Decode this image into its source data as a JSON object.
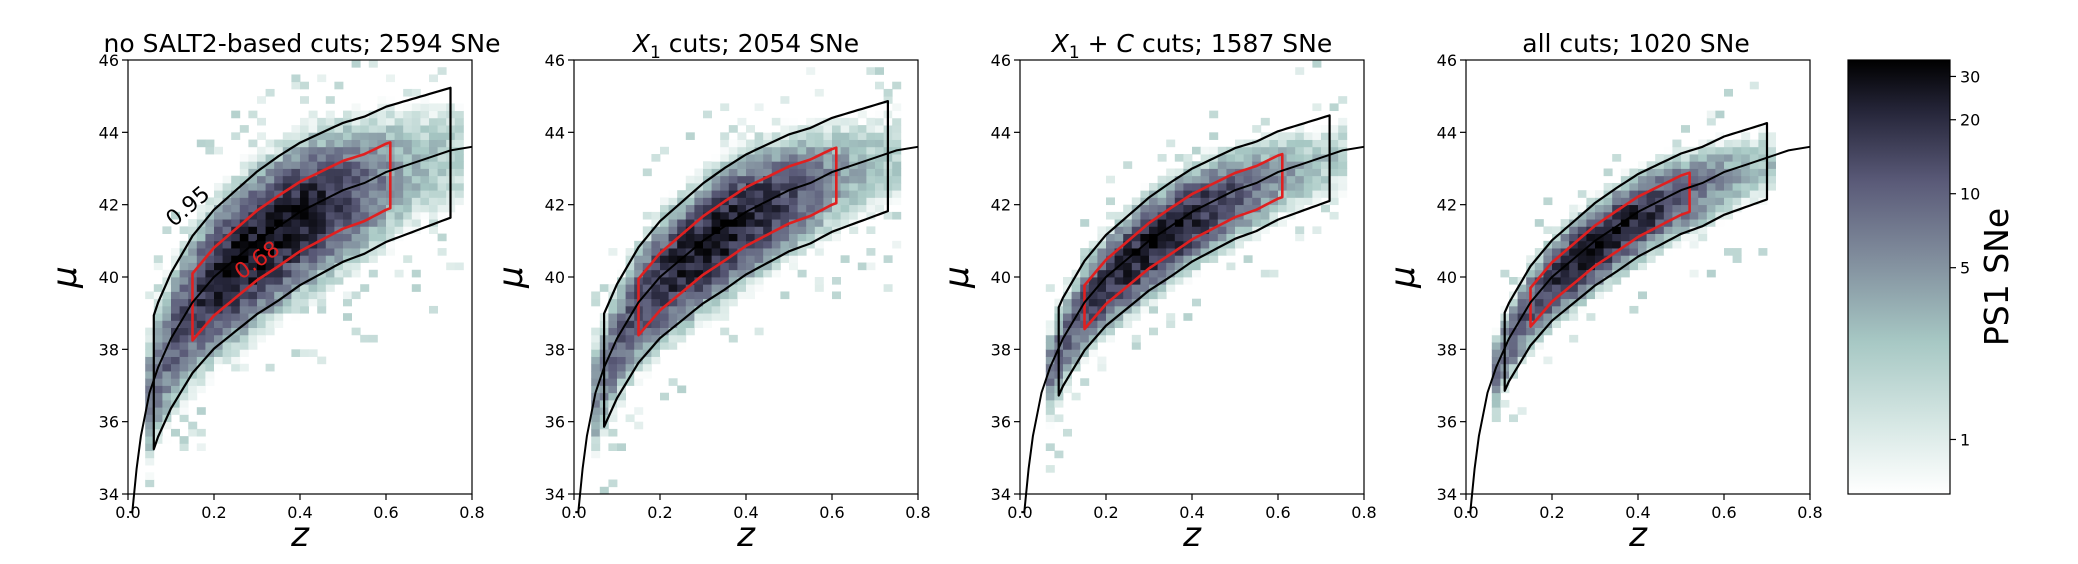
{
  "chart_data": [
    {
      "type": "heatmap",
      "title": "no SALT2-based cuts; 2594 SNe",
      "xlabel": "z",
      "ylabel": "μ",
      "xlim": [
        0.0,
        0.8
      ],
      "ylim": [
        34,
        46
      ],
      "xticks": [
        "0.0",
        "0.2",
        "0.4",
        "0.6",
        "0.8"
      ],
      "yticks": [
        "34",
        "36",
        "38",
        "40",
        "42",
        "44",
        "46"
      ],
      "n_sne": 2594,
      "contours": [
        {
          "level": "0.95",
          "color": "#000000"
        },
        {
          "level": "0.68",
          "color": "#e02020"
        }
      ]
    },
    {
      "type": "heatmap",
      "title_main": "X",
      "title_sub": "1",
      "title_rest": " cuts; 2054 SNe",
      "xlabel": "z",
      "ylabel": "μ",
      "xlim": [
        0.0,
        0.8
      ],
      "ylim": [
        34,
        46
      ],
      "xticks": [
        "0.0",
        "0.2",
        "0.4",
        "0.6",
        "0.8"
      ],
      "yticks": [
        "34",
        "36",
        "38",
        "40",
        "42",
        "44",
        "46"
      ],
      "n_sne": 2054
    },
    {
      "type": "heatmap",
      "title_main": "X",
      "title_sub": "1",
      "title_plus": " + ",
      "title_c": "C",
      "title_rest": " cuts; 1587 SNe",
      "xlabel": "z",
      "ylabel": "μ",
      "xlim": [
        0.0,
        0.8
      ],
      "ylim": [
        34,
        46
      ],
      "xticks": [
        "0.0",
        "0.2",
        "0.4",
        "0.6",
        "0.8"
      ],
      "yticks": [
        "34",
        "36",
        "38",
        "40",
        "42",
        "44",
        "46"
      ],
      "n_sne": 1587
    },
    {
      "type": "heatmap",
      "title": "all cuts; 1020 SNe",
      "xlabel": "z",
      "ylabel": "μ",
      "xlim": [
        0.0,
        0.8
      ],
      "ylim": [
        34,
        46
      ],
      "xticks": [
        "0.0",
        "0.2",
        "0.4",
        "0.6",
        "0.8"
      ],
      "yticks": [
        "34",
        "36",
        "38",
        "40",
        "42",
        "44",
        "46"
      ],
      "n_sne": 1020
    }
  ],
  "colorbar": {
    "label": "PS1 SNe",
    "scale": "log",
    "range": [
      0.6,
      35
    ],
    "ticks": [
      "1",
      "5",
      "10",
      "20",
      "30"
    ],
    "colormap": "bone_r"
  },
  "hubble_curve": {
    "z": [
      0.003,
      0.01,
      0.02,
      0.03,
      0.05,
      0.07,
      0.1,
      0.15,
      0.2,
      0.25,
      0.3,
      0.35,
      0.4,
      0.45,
      0.5,
      0.55,
      0.6,
      0.65,
      0.7,
      0.75,
      0.8
    ],
    "mu": [
      33.0,
      33.2,
      34.7,
      35.6,
      36.8,
      37.5,
      38.3,
      39.3,
      40.0,
      40.5,
      41.0,
      41.4,
      41.8,
      42.1,
      42.4,
      42.6,
      42.9,
      43.1,
      43.3,
      43.5,
      43.6
    ]
  },
  "colors": {
    "outer_contour": "#000000",
    "inner_contour": "#e02020"
  }
}
